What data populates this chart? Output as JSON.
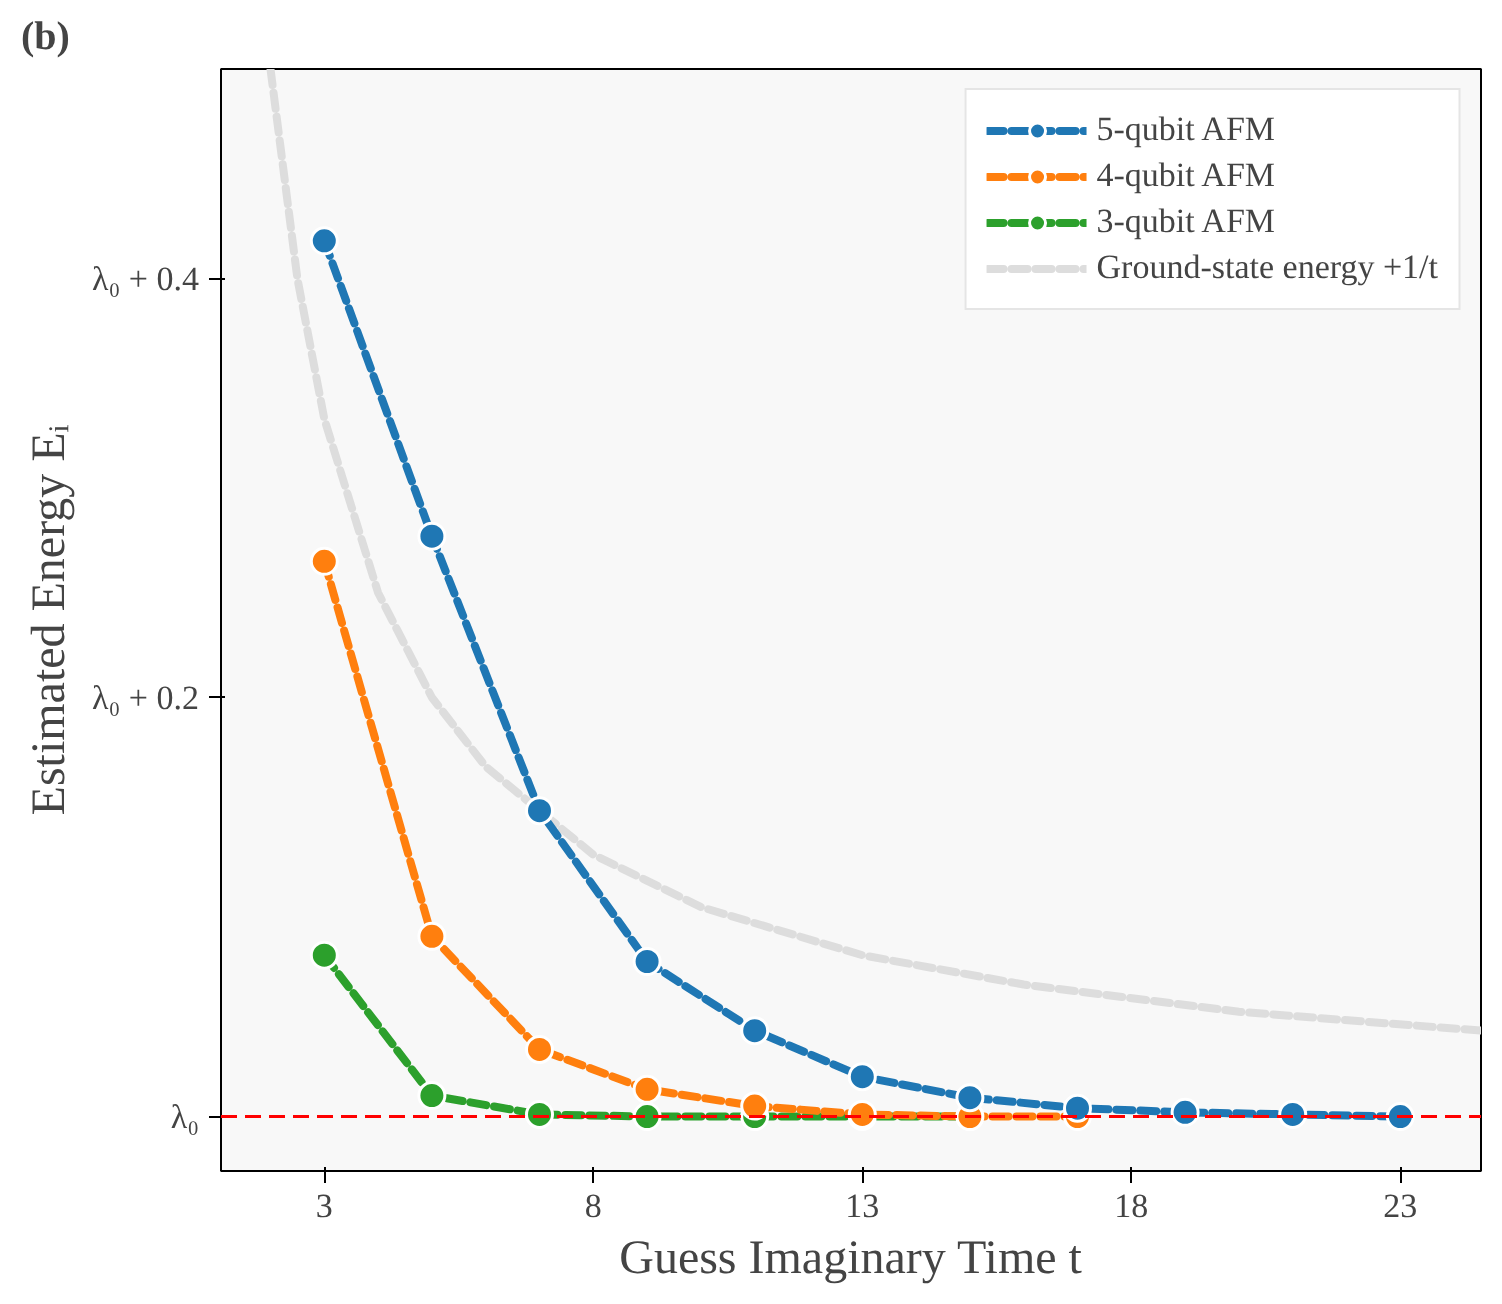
{
  "chart_data": {
    "type": "line",
    "xlabel": "Guess Imaginary Time t",
    "ylabel": "Estimated Energy Eᵢ",
    "annotations": [
      "(b)"
    ],
    "xlim": [
      1.08,
      24.5
    ],
    "xticks": [
      3,
      8,
      13,
      18,
      23
    ],
    "ylim": [
      -0.026,
      0.5
    ],
    "yticks": [
      {
        "value": 0,
        "label": "λ₀"
      },
      {
        "value": 0.2,
        "label": "λ₀ + 0.2"
      },
      {
        "value": 0.4,
        "label": "λ₀ + 0.4"
      }
    ],
    "grid": false,
    "legend": "top right",
    "marker": "circle",
    "line_style": "dashed",
    "series": [
      {
        "name": "5-qubit AFM",
        "color": "#1f77b4",
        "x": [
          3,
          5,
          7,
          9,
          11,
          13,
          15,
          17,
          19,
          21,
          23
        ],
        "values": [
          0.418,
          0.277,
          0.146,
          0.074,
          0.041,
          0.019,
          0.009,
          0.004,
          0.002,
          0.001,
          0.0
        ]
      },
      {
        "name": "4-qubit AFM",
        "color": "#ff7f0e",
        "x": [
          3,
          5,
          7,
          9,
          11,
          13,
          15,
          17
        ],
        "values": [
          0.265,
          0.086,
          0.032,
          0.013,
          0.005,
          0.001,
          0.0,
          0.0
        ]
      },
      {
        "name": "3-qubit AFM",
        "color": "#2ca02c",
        "x": [
          3,
          5,
          7,
          9,
          11,
          13,
          15
        ],
        "values": [
          0.077,
          0.01,
          0.001,
          0.0,
          0.0,
          0.0,
          0.0
        ]
      },
      {
        "name": "Ground-state energy +1/t",
        "color": "#dddddd",
        "marker": "none",
        "x": [
          2,
          2.5,
          3,
          4,
          5,
          6,
          8,
          10,
          13,
          16,
          20,
          24.5
        ],
        "values": [
          0.5,
          0.4,
          0.333,
          0.25,
          0.2,
          0.167,
          0.125,
          0.1,
          0.077,
          0.063,
          0.05,
          0.041
        ]
      }
    ],
    "ref_lines": [
      {
        "axis": "y",
        "value": 0,
        "color": "#ff0000",
        "line_style": "dashed"
      }
    ]
  }
}
